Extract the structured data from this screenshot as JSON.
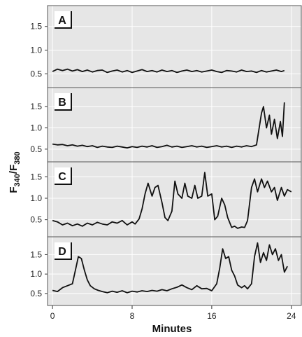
{
  "chart_data": {
    "type": "line",
    "xlabel": "Minutes",
    "ylabel": {
      "base": "F",
      "sub1": "340",
      "sep": "/F",
      "sub2": "380"
    },
    "xlim": [
      -0.5,
      25
    ],
    "x_ticks": [
      0,
      8,
      16,
      24
    ],
    "y_ticks": [
      0.5,
      1.0,
      1.5
    ],
    "y_tick_labels": [
      "0.5",
      "1.0",
      "1.5"
    ],
    "ylim": [
      0.3,
      1.85
    ],
    "grid": true,
    "panels": [
      {
        "label": "A",
        "ylim": [
          0.3,
          1.85
        ],
        "series": [
          {
            "x": [
              0,
              0.5,
              1,
              1.5,
              2,
              2.5,
              3,
              3.5,
              4,
              4.5,
              5,
              5.5,
              6,
              6.5,
              7,
              7.5,
              8,
              8.5,
              9,
              9.5,
              10,
              10.5,
              11,
              11.5,
              12,
              12.5,
              13,
              13.5,
              14,
              14.5,
              15,
              15.5,
              16,
              16.5,
              17,
              17.5,
              18,
              18.5,
              19,
              19.5,
              20,
              20.5,
              21,
              21.5,
              22,
              22.5,
              23,
              23.3
            ],
            "y": [
              0.55,
              0.6,
              0.57,
              0.6,
              0.56,
              0.59,
              0.55,
              0.58,
              0.54,
              0.57,
              0.58,
              0.53,
              0.56,
              0.58,
              0.54,
              0.57,
              0.53,
              0.56,
              0.59,
              0.55,
              0.57,
              0.54,
              0.58,
              0.55,
              0.57,
              0.53,
              0.56,
              0.58,
              0.55,
              0.57,
              0.54,
              0.56,
              0.58,
              0.55,
              0.53,
              0.57,
              0.56,
              0.54,
              0.58,
              0.55,
              0.56,
              0.53,
              0.57,
              0.54,
              0.56,
              0.58,
              0.55,
              0.57
            ]
          }
        ]
      },
      {
        "label": "B",
        "ylim": [
          0.3,
          1.85
        ],
        "series": [
          {
            "x": [
              0,
              0.5,
              1,
              1.5,
              2,
              2.5,
              3,
              3.5,
              4,
              4.5,
              5,
              5.5,
              6,
              6.5,
              7,
              7.5,
              8,
              8.5,
              9,
              9.5,
              10,
              10.5,
              11,
              11.5,
              12,
              12.5,
              13,
              13.5,
              14,
              14.5,
              15,
              15.5,
              16,
              16.5,
              17,
              17.5,
              18,
              18.5,
              19,
              19.5,
              20,
              20.5,
              21,
              21.2,
              21.5,
              21.8,
              22,
              22.3,
              22.6,
              22.9,
              23.1,
              23.3
            ],
            "y": [
              0.62,
              0.6,
              0.61,
              0.58,
              0.6,
              0.57,
              0.59,
              0.56,
              0.58,
              0.54,
              0.57,
              0.55,
              0.54,
              0.57,
              0.55,
              0.53,
              0.56,
              0.54,
              0.57,
              0.55,
              0.58,
              0.54,
              0.56,
              0.59,
              0.55,
              0.57,
              0.54,
              0.56,
              0.58,
              0.55,
              0.57,
              0.54,
              0.56,
              0.58,
              0.55,
              0.57,
              0.54,
              0.57,
              0.55,
              0.58,
              0.56,
              0.6,
              1.35,
              1.5,
              1.0,
              1.3,
              0.85,
              1.2,
              0.75,
              1.15,
              0.8,
              1.6
            ]
          }
        ]
      },
      {
        "label": "C",
        "ylim": [
          0.2,
          1.75
        ],
        "series": [
          {
            "x": [
              0,
              0.5,
              1,
              1.5,
              2,
              2.5,
              3,
              3.5,
              4,
              4.5,
              5,
              5.5,
              6,
              6.5,
              7,
              7.5,
              8,
              8.3,
              8.7,
              9,
              9.3,
              9.6,
              10,
              10.3,
              10.6,
              11,
              11.3,
              11.6,
              12,
              12.3,
              12.6,
              13,
              13.3,
              13.6,
              14,
              14.3,
              14.6,
              15,
              15.3,
              15.6,
              16,
              16.3,
              16.6,
              17,
              17.3,
              17.6,
              18,
              18.3,
              18.6,
              19,
              19.3,
              19.6,
              20,
              20.3,
              20.6,
              21,
              21.3,
              21.6,
              22,
              22.3,
              22.6,
              23,
              23.3,
              23.6,
              24
            ],
            "y": [
              0.48,
              0.45,
              0.38,
              0.42,
              0.36,
              0.4,
              0.35,
              0.42,
              0.38,
              0.44,
              0.4,
              0.38,
              0.45,
              0.42,
              0.48,
              0.38,
              0.45,
              0.4,
              0.52,
              0.75,
              1.1,
              1.35,
              1.05,
              1.25,
              1.3,
              0.9,
              0.55,
              0.48,
              0.7,
              1.4,
              1.1,
              1.0,
              1.35,
              1.05,
              1.0,
              1.3,
              1.0,
              1.05,
              1.6,
              1.05,
              1.1,
              0.5,
              0.58,
              1.0,
              0.85,
              0.55,
              0.32,
              0.35,
              0.3,
              0.33,
              0.32,
              0.48,
              1.25,
              1.45,
              1.15,
              1.45,
              1.25,
              1.4,
              1.15,
              1.25,
              0.95,
              1.25,
              1.05,
              1.2,
              1.15
            ]
          }
        ]
      },
      {
        "label": "D",
        "ylim": [
          0.3,
          1.85
        ],
        "series": [
          {
            "x": [
              0,
              0.5,
              1,
              1.5,
              2,
              2.3,
              2.6,
              2.9,
              3.2,
              3.5,
              3.8,
              4.2,
              4.6,
              5,
              5.5,
              6,
              6.5,
              7,
              7.5,
              8,
              8.5,
              9,
              9.5,
              10,
              10.5,
              11,
              11.5,
              12,
              12.5,
              13,
              13.5,
              14,
              14.5,
              15,
              15.5,
              16,
              16.5,
              16.8,
              17.1,
              17.4,
              17.7,
              18,
              18.3,
              18.6,
              19,
              19.3,
              19.6,
              20,
              20.3,
              20.6,
              20.9,
              21.2,
              21.5,
              21.8,
              22.1,
              22.4,
              22.7,
              23,
              23.3,
              23.6
            ],
            "y": [
              0.58,
              0.55,
              0.65,
              0.7,
              0.75,
              1.1,
              1.45,
              1.4,
              1.1,
              0.85,
              0.7,
              0.62,
              0.58,
              0.55,
              0.52,
              0.56,
              0.53,
              0.57,
              0.52,
              0.56,
              0.54,
              0.57,
              0.55,
              0.58,
              0.56,
              0.6,
              0.57,
              0.62,
              0.66,
              0.72,
              0.65,
              0.6,
              0.7,
              0.62,
              0.63,
              0.57,
              0.75,
              1.15,
              1.65,
              1.4,
              1.45,
              1.1,
              0.95,
              0.72,
              0.65,
              0.7,
              0.62,
              0.75,
              1.45,
              1.8,
              1.3,
              1.55,
              1.35,
              1.75,
              1.5,
              1.65,
              1.35,
              1.5,
              1.05,
              1.2
            ]
          }
        ]
      }
    ]
  }
}
